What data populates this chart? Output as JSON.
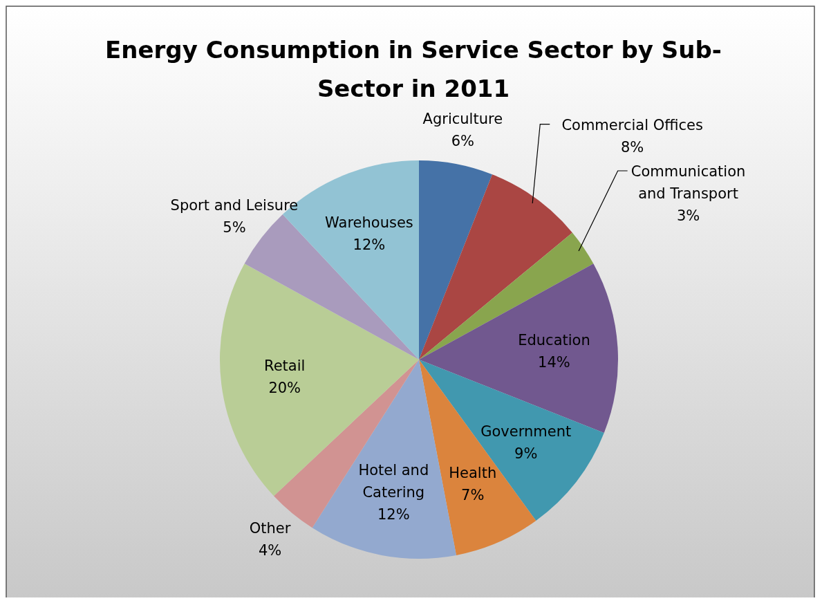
{
  "chart_data": {
    "type": "pie",
    "title": "Energy Consumption in Service Sector by Sub-Sector in 2011",
    "categories": [
      "Agriculture",
      "Commercial Offices",
      "Communication and Transport",
      "Education",
      "Government",
      "Health",
      "Hotel and Catering",
      "Other",
      "Retail",
      "Sport and Leisure",
      "Warehouses"
    ],
    "values": [
      6,
      8,
      3,
      14,
      9,
      7,
      12,
      4,
      20,
      5,
      12
    ],
    "value_labels": [
      "6%",
      "8%",
      "3%",
      "14%",
      "9%",
      "7%",
      "12%",
      "4%",
      "20%",
      "5%",
      "12%"
    ],
    "colors": [
      "#4572a7",
      "#aa4643",
      "#89a54e",
      "#71588f",
      "#4198af",
      "#db843d",
      "#93a9cf",
      "#d19392",
      "#b9cd96",
      "#a99bbd",
      "#92c3d4"
    ]
  }
}
